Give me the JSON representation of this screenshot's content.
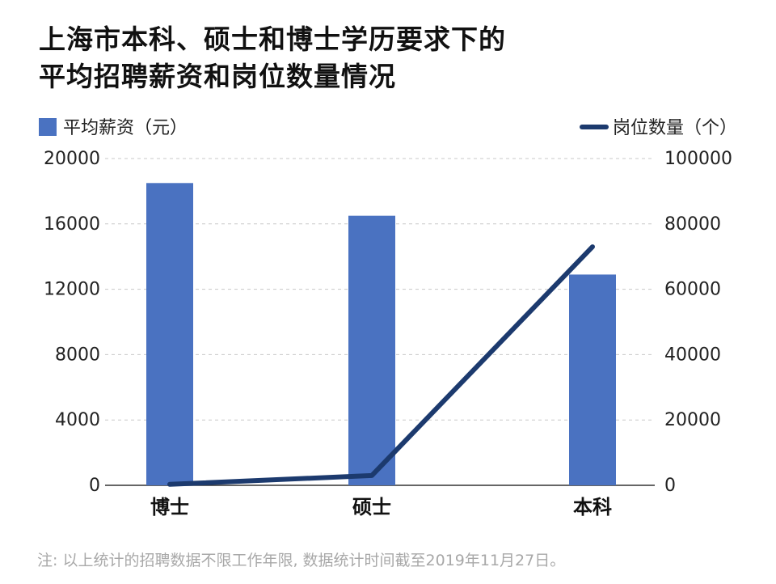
{
  "title_lines": [
    "上海市本科、硕士和博士学历要求下的",
    "平均招聘薪资和岗位数量情况"
  ],
  "note": "注: 以上统计的招聘数据不限工作年限, 数据统计时间截至2019年11月27日。",
  "colors": {
    "bar": "#4a72c1",
    "line": "#1c3a6e",
    "grid": "#c8c8c8",
    "axis": "#333333",
    "note": "#a8a8a8"
  },
  "chart_data": {
    "type": "bar",
    "categories": [
      "博士",
      "硕士",
      "本科"
    ],
    "series": [
      {
        "name": "平均薪资（元）",
        "type": "bar",
        "axis": "left",
        "values": [
          18500,
          16500,
          12900
        ]
      },
      {
        "name": "岗位数量（个）",
        "type": "line",
        "axis": "right",
        "values": [
          300,
          3000,
          73000
        ]
      }
    ],
    "y_left": {
      "ylim": [
        0,
        20000
      ],
      "ticks": [
        "0",
        "4000",
        "8000",
        "12000",
        "16000",
        "20000"
      ]
    },
    "y_right": {
      "ylim": [
        0,
        100000
      ],
      "ticks": [
        "0",
        "20000",
        "40000",
        "60000",
        "80000",
        "100000"
      ]
    },
    "grid": true,
    "legend": [
      "top-left",
      "top-right"
    ]
  }
}
